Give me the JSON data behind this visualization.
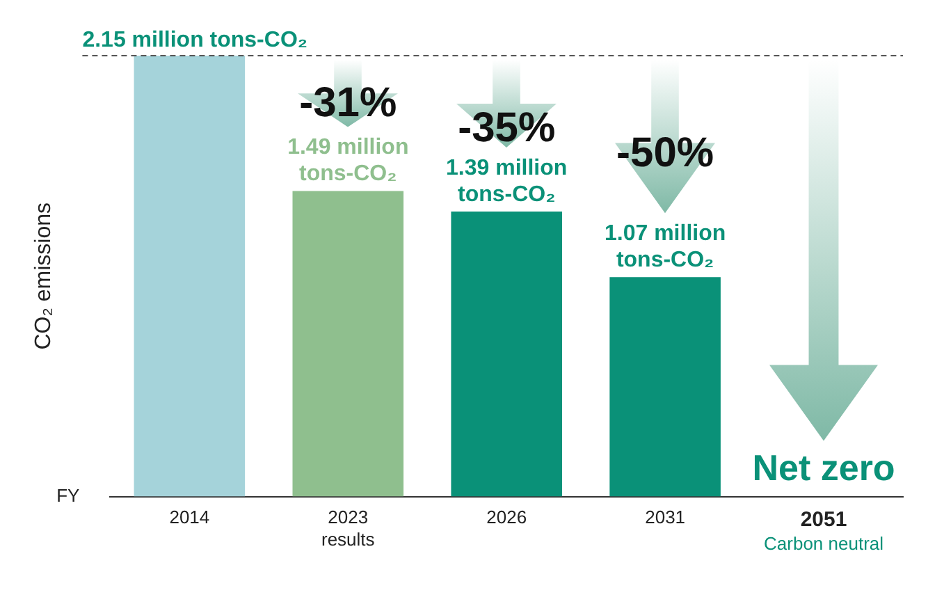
{
  "chart_data": {
    "type": "bar",
    "categories": [
      "2014",
      "2023 results",
      "2026",
      "2031",
      "2051"
    ],
    "values": [
      2.15,
      1.49,
      1.39,
      1.07,
      0
    ],
    "colors": [
      "#a5d3da",
      "#8fbf8e",
      "#0a9178",
      "#0a9178",
      "#0a9178"
    ],
    "value_labels": [
      null,
      "1.49 million tons-CO₂",
      "1.39 million tons-CO₂",
      "1.07 million tons-CO₂",
      "Net zero"
    ],
    "ylim": [
      0,
      2.15
    ],
    "tick_labels": "x",
    "xlabel": "FY",
    "ylabel": "CO₂ emissions",
    "ref_lines": [
      {
        "axis": "y",
        "value": 2.15,
        "label": "2.15 million tons-CO₂",
        "color": "#555555",
        "line_style": "dashed"
      }
    ],
    "annotations": [
      "-31%",
      "-35%",
      "-50%",
      "Carbon neutral"
    ],
    "grid": false,
    "legend": false
  }
}
